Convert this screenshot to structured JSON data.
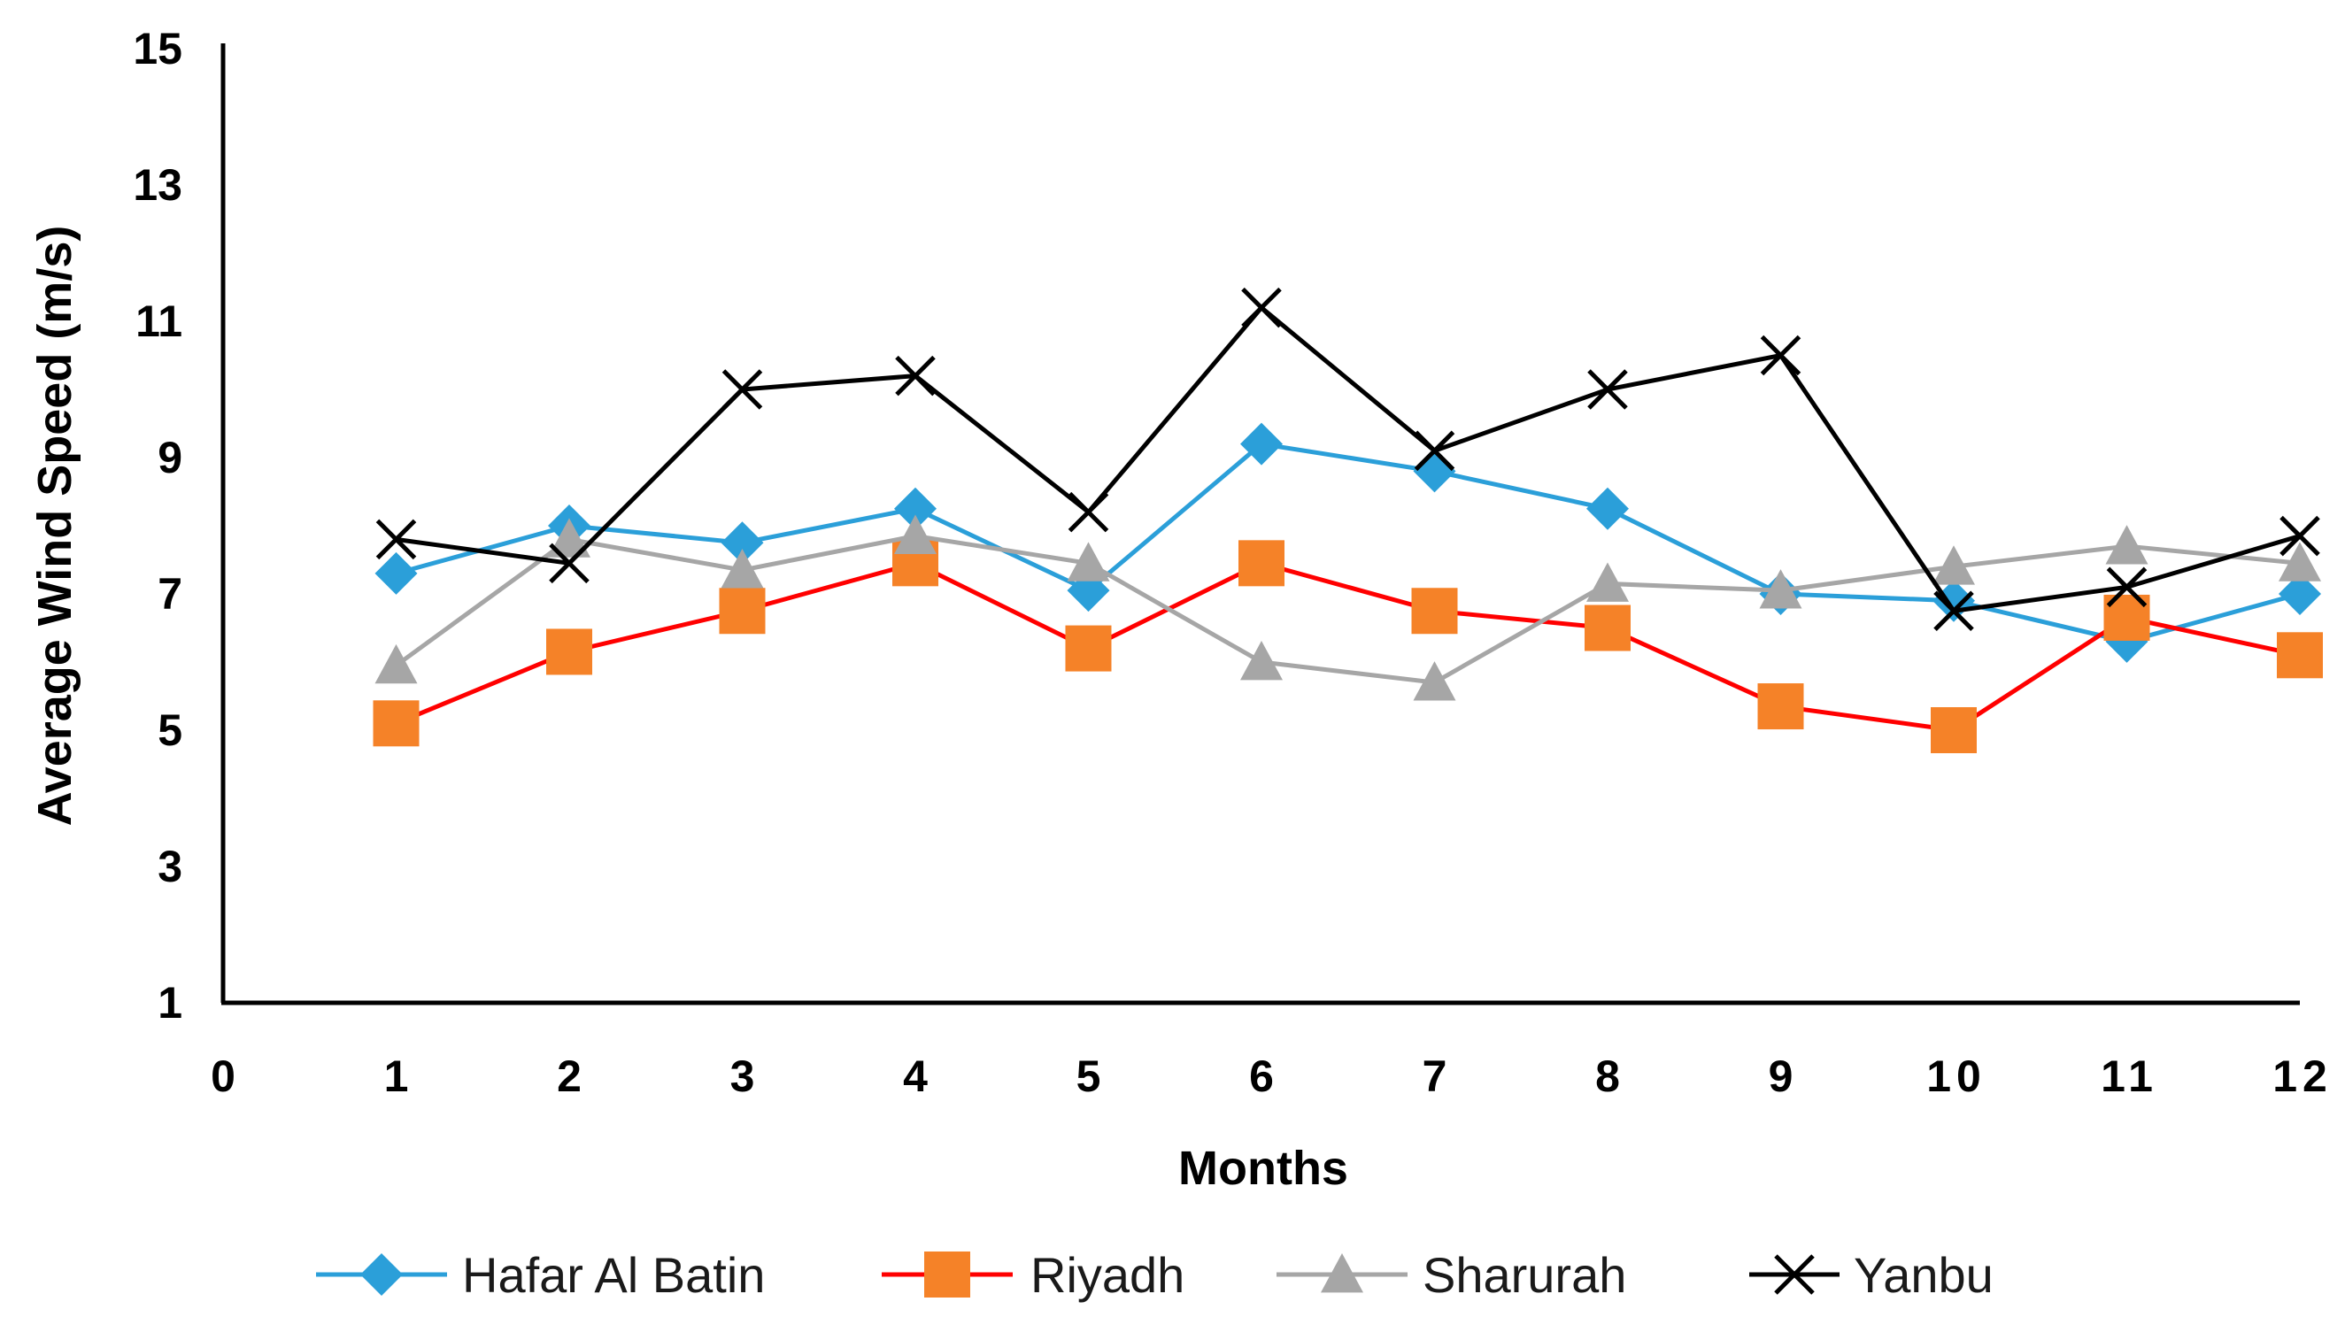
{
  "chart_data": {
    "type": "line",
    "title": "",
    "xlabel": "Months",
    "ylabel": "Average Wind Speed (m/s)",
    "xlim": [
      0,
      12
    ],
    "ylim": [
      1,
      15
    ],
    "x_ticks": [
      "0",
      "1",
      "2",
      "3",
      "4",
      "5",
      "6",
      "7",
      "8",
      "9",
      "10",
      "11",
      "12"
    ],
    "y_ticks": [
      "1",
      "3",
      "5",
      "7",
      "9",
      "11",
      "13",
      "15"
    ],
    "grid": false,
    "legend_position": "bottom",
    "x": [
      1,
      2,
      3,
      4,
      5,
      6,
      7,
      8,
      9,
      10,
      11,
      12
    ],
    "series": [
      {
        "name": "Hafar Al Batin",
        "color": "#2b9fd9",
        "marker": "diamond",
        "values": [
          7.3,
          8.0,
          7.75,
          8.25,
          7.05,
          9.2,
          8.8,
          8.25,
          7.0,
          6.9,
          6.3,
          7.0
        ]
      },
      {
        "name": "Riyadh",
        "color": "#ff0000",
        "marker_color": "#f58228",
        "marker": "square",
        "values": [
          5.1,
          6.15,
          6.75,
          7.45,
          6.2,
          7.45,
          6.75,
          6.5,
          5.35,
          5.0,
          6.65,
          6.1
        ]
      },
      {
        "name": "Sharurah",
        "color": "#a6a6a6",
        "marker": "triangle",
        "values": [
          5.95,
          7.8,
          7.35,
          7.85,
          7.45,
          6.0,
          5.7,
          7.15,
          7.05,
          7.4,
          7.7,
          7.45
        ]
      },
      {
        "name": "Yanbu",
        "color": "#000000",
        "marker": "x",
        "values": [
          7.8,
          7.45,
          10.0,
          10.2,
          8.2,
          11.2,
          9.1,
          10.0,
          10.5,
          6.75,
          7.1,
          7.85
        ]
      }
    ]
  }
}
